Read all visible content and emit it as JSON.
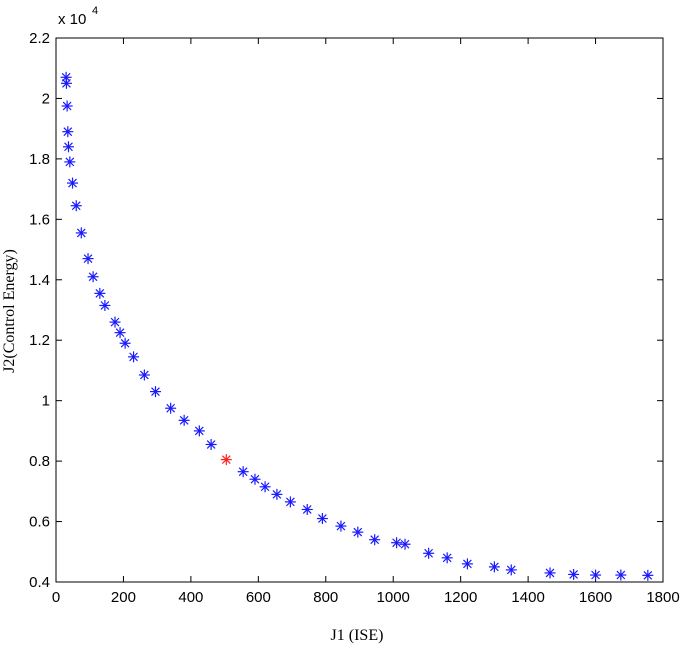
{
  "chart_data": {
    "type": "scatter",
    "xlabel": "J1 (ISE)",
    "ylabel": "J2(Control Energy)",
    "y_multiplier_base": "x 10",
    "y_multiplier_exp": "4",
    "xlim": [
      0,
      1800
    ],
    "ylim": [
      0.4,
      2.2
    ],
    "xticks": [
      0,
      200,
      400,
      600,
      800,
      1000,
      1200,
      1400,
      1600,
      1800
    ],
    "yticks": [
      0.4,
      0.6,
      0.8,
      1,
      1.2,
      1.4,
      1.6,
      1.8,
      2,
      2.2
    ],
    "ytick_labels": [
      "0.4",
      "0.6",
      "0.8",
      "1",
      "1.2",
      "1.4",
      "1.6",
      "1.8",
      "2",
      "2.2"
    ],
    "marker": "asterisk",
    "grid": false,
    "series": [
      {
        "color": "#1a1aff",
        "points": [
          [
            30,
            2.07
          ],
          [
            31,
            2.05
          ],
          [
            33,
            1.975
          ],
          [
            35,
            1.89
          ],
          [
            37,
            1.84
          ],
          [
            41,
            1.79
          ],
          [
            49,
            1.72
          ],
          [
            60,
            1.645
          ],
          [
            75,
            1.555
          ],
          [
            95,
            1.47
          ],
          [
            110,
            1.41
          ],
          [
            130,
            1.355
          ],
          [
            145,
            1.315
          ],
          [
            175,
            1.26
          ],
          [
            190,
            1.225
          ],
          [
            205,
            1.19
          ],
          [
            230,
            1.145
          ],
          [
            262,
            1.085
          ],
          [
            295,
            1.03
          ],
          [
            340,
            0.975
          ],
          [
            380,
            0.935
          ],
          [
            425,
            0.9
          ],
          [
            460,
            0.855
          ],
          [
            555,
            0.765
          ],
          [
            590,
            0.74
          ],
          [
            620,
            0.715
          ],
          [
            655,
            0.69
          ],
          [
            695,
            0.665
          ],
          [
            745,
            0.64
          ],
          [
            790,
            0.61
          ],
          [
            845,
            0.585
          ],
          [
            895,
            0.565
          ],
          [
            945,
            0.54
          ],
          [
            1010,
            0.53
          ],
          [
            1035,
            0.525
          ],
          [
            1105,
            0.495
          ],
          [
            1160,
            0.48
          ],
          [
            1220,
            0.46
          ],
          [
            1300,
            0.45
          ],
          [
            1350,
            0.44
          ],
          [
            1465,
            0.43
          ],
          [
            1535,
            0.425
          ],
          [
            1600,
            0.423
          ],
          [
            1675,
            0.423
          ],
          [
            1755,
            0.422
          ]
        ]
      },
      {
        "color": "#ff2020",
        "points": [
          [
            505,
            0.805
          ]
        ]
      }
    ]
  }
}
